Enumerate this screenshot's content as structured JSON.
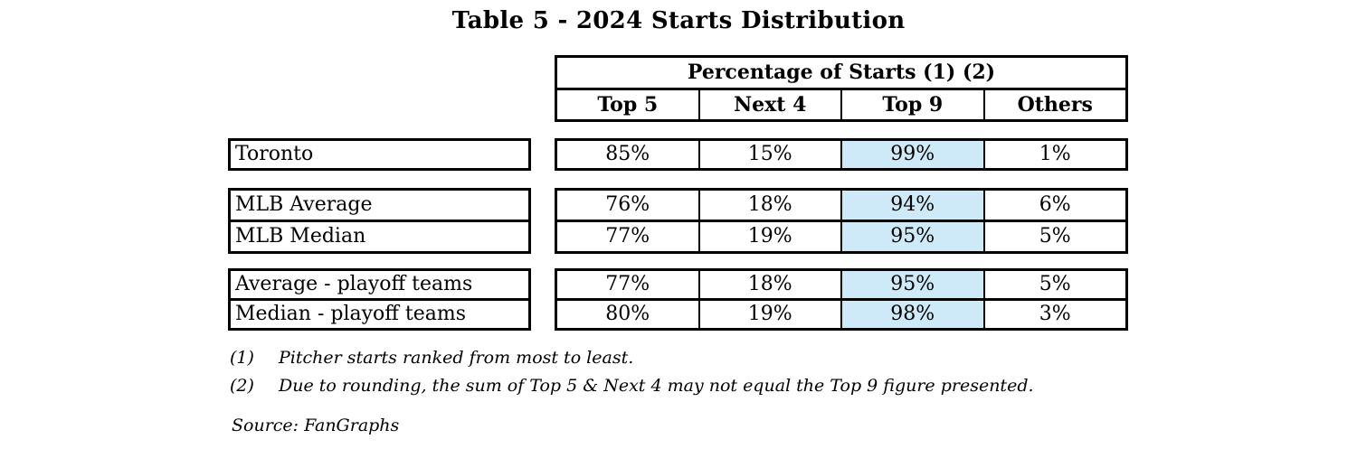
{
  "title": "Table 5 - 2024 Starts Distribution",
  "table": {
    "header": {
      "group_label": "Percentage of Starts (1) (2)",
      "columns": [
        "Top 5",
        "Next 4",
        "Top 9",
        "Others"
      ]
    },
    "highlight_column": "Top 9",
    "highlight_color": "#cee9f7",
    "groups": [
      [
        {
          "label": "Toronto",
          "values": [
            "85%",
            "15%",
            "99%",
            "1%"
          ]
        }
      ],
      [
        {
          "label": "MLB Average",
          "values": [
            "76%",
            "18%",
            "94%",
            "6%"
          ]
        },
        {
          "label": "MLB Median",
          "values": [
            "77%",
            "19%",
            "95%",
            "5%"
          ]
        }
      ],
      [
        {
          "label": "Average - playoff teams",
          "values": [
            "77%",
            "18%",
            "95%",
            "5%"
          ]
        },
        {
          "label": "Median - playoff teams",
          "values": [
            "80%",
            "19%",
            "98%",
            "3%"
          ]
        }
      ]
    ]
  },
  "footnotes": [
    {
      "marker": "(1)",
      "text": "Pitcher starts ranked from most to least."
    },
    {
      "marker": "(2)",
      "text": "Due to rounding, the sum of Top 5 & Next 4 may not equal the Top 9 figure presented."
    }
  ],
  "source": "Source: FanGraphs",
  "chart_data": {
    "type": "table",
    "title": "Table 5 - 2024 Starts Distribution",
    "column_group_header": "Percentage of Starts (1) (2)",
    "columns": [
      "Top 5",
      "Next 4",
      "Top 9",
      "Others"
    ],
    "rows": [
      {
        "label": "Toronto",
        "top5": 85,
        "next4": 15,
        "top9": 99,
        "others": 1
      },
      {
        "label": "MLB Average",
        "top5": 76,
        "next4": 18,
        "top9": 94,
        "others": 6
      },
      {
        "label": "MLB Median",
        "top5": 77,
        "next4": 19,
        "top9": 95,
        "others": 5
      },
      {
        "label": "Average - playoff teams",
        "top5": 77,
        "next4": 18,
        "top9": 95,
        "others": 5
      },
      {
        "label": "Median - playoff teams",
        "top5": 80,
        "next4": 19,
        "top9": 98,
        "others": 3
      }
    ],
    "units": "percent",
    "highlighted_column": "Top 9",
    "footnotes": [
      "Pitcher starts ranked from most to least.",
      "Due to rounding, the sum of Top 5 & Next 4 may not equal the Top 9 figure presented."
    ],
    "source": "FanGraphs"
  }
}
